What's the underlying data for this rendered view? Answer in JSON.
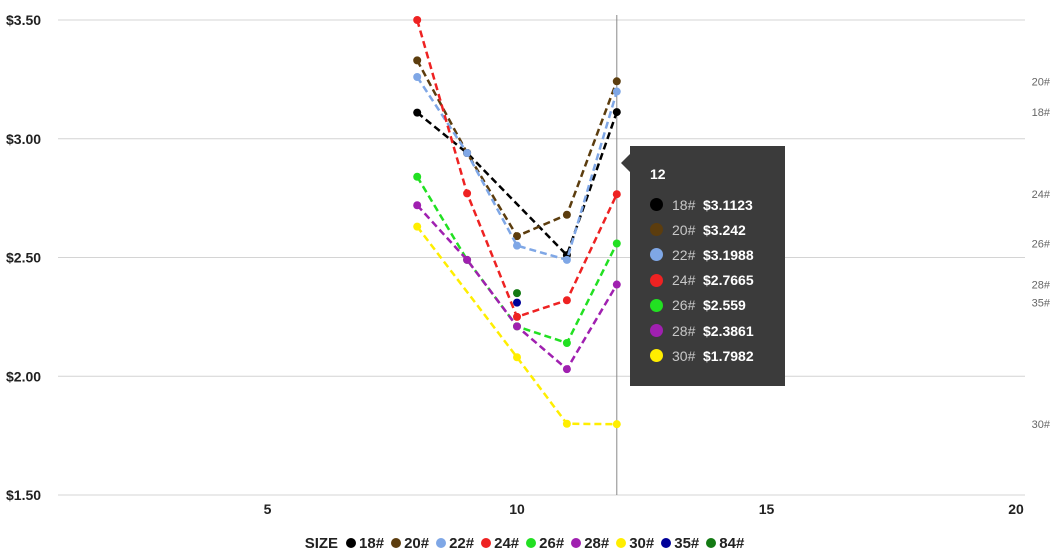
{
  "chart_data": {
    "type": "line",
    "title": "",
    "xlabel": "",
    "ylabel": "",
    "xlim": [
      0,
      20
    ],
    "ylim": [
      1.5,
      3.5
    ],
    "x_ticks": [
      5,
      10,
      15,
      20
    ],
    "y_ticks": [
      1.5,
      2.0,
      2.5,
      3.0,
      3.5
    ],
    "y_tick_labels": [
      "$1.50",
      "$2.00",
      "$2.50",
      "$3.00",
      "$3.50"
    ],
    "grid": "horizontal",
    "legend_title": "SIZE",
    "legend_position": "bottom-center",
    "hover_x": 12,
    "series": [
      {
        "name": "18#",
        "color": "#000000",
        "x": [
          8,
          9,
          11,
          12
        ],
        "y": [
          3.11,
          2.94,
          2.51,
          3.1123
        ],
        "end_label": "18#"
      },
      {
        "name": "20#",
        "color": "#5c3d0e",
        "x": [
          8,
          9,
          10,
          11,
          12
        ],
        "y": [
          3.33,
          2.94,
          2.59,
          2.68,
          3.242
        ],
        "end_label": "20#"
      },
      {
        "name": "22#",
        "color": "#7fa7e6",
        "x": [
          8,
          9,
          10,
          11,
          12
        ],
        "y": [
          3.26,
          2.94,
          2.55,
          2.49,
          3.1988
        ],
        "end_label": ""
      },
      {
        "name": "24#",
        "color": "#ee2222",
        "x": [
          8,
          9,
          10,
          11,
          12
        ],
        "y": [
          3.5,
          2.77,
          2.25,
          2.32,
          2.7665
        ],
        "end_label": "24#"
      },
      {
        "name": "26#",
        "color": "#22e022",
        "x": [
          8,
          9,
          10,
          11,
          12
        ],
        "y": [
          2.84,
          2.49,
          2.21,
          2.14,
          2.559
        ],
        "end_label": "26#"
      },
      {
        "name": "28#",
        "color": "#a020b0",
        "x": [
          8,
          9,
          10,
          11,
          12
        ],
        "y": [
          2.72,
          2.49,
          2.21,
          2.03,
          2.3861
        ],
        "end_label": "28#"
      },
      {
        "name": "30#",
        "color": "#ffee00",
        "x": [
          8,
          10,
          11,
          12
        ],
        "y": [
          2.63,
          2.08,
          1.8,
          1.7982
        ],
        "end_label": "30#"
      },
      {
        "name": "35#",
        "color": "#000099",
        "x": [
          10
        ],
        "y": [
          2.31
        ],
        "end_label": "35#"
      },
      {
        "name": "84#",
        "color": "#137a13",
        "x": [
          10
        ],
        "y": [
          2.35
        ],
        "end_label": ""
      }
    ]
  },
  "tooltip": {
    "title": "12",
    "rows": [
      {
        "name": "18#",
        "value": "$3.1123",
        "color": "#000000"
      },
      {
        "name": "20#",
        "value": "$3.242",
        "color": "#5c3d0e"
      },
      {
        "name": "22#",
        "value": "$3.1988",
        "color": "#7fa7e6"
      },
      {
        "name": "24#",
        "value": "$2.7665",
        "color": "#ee2222"
      },
      {
        "name": "26#",
        "value": "$2.559",
        "color": "#22e022"
      },
      {
        "name": "28#",
        "value": "$2.3861",
        "color": "#a020b0"
      },
      {
        "name": "30#",
        "value": "$1.7982",
        "color": "#ffee00"
      }
    ]
  }
}
